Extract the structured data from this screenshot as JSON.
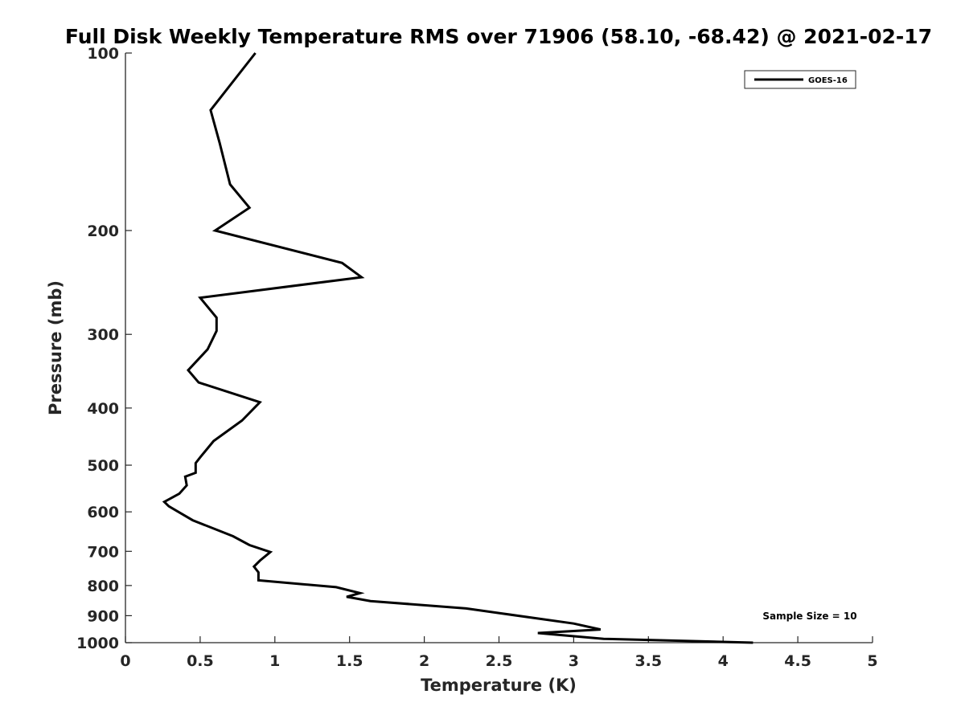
{
  "chart_data": {
    "type": "line",
    "title": "Full Disk Weekly Temperature RMS over 71906 (58.10, -68.42) @ 2021-02-17",
    "xlabel": "Temperature (K)",
    "ylabel": "Pressure (mb)",
    "xlim": [
      0,
      5
    ],
    "ylim": [
      100,
      1000
    ],
    "yscale": "log",
    "y_reversed": true,
    "grid": false,
    "x_ticks": [
      "0",
      "0.5",
      "1",
      "1.5",
      "2",
      "2.5",
      "3",
      "3.5",
      "4",
      "4.5",
      "5"
    ],
    "y_ticks": [
      "100",
      "200",
      "300",
      "400",
      "500",
      "600",
      "700",
      "800",
      "900",
      "1000"
    ],
    "legend": {
      "placement": "top-right",
      "entries": [
        "GOES-16"
      ]
    },
    "annotations": [
      "Sample Size = 10"
    ],
    "series": [
      {
        "name": "GOES-16",
        "color": "#000000",
        "x": [
          4.2,
          3.2,
          2.76,
          3.18,
          3.0,
          2.28,
          1.64,
          1.48,
          1.57,
          1.41,
          0.89,
          0.89,
          0.86,
          0.9,
          0.97,
          0.83,
          0.72,
          0.45,
          0.29,
          0.26,
          0.36,
          0.41,
          0.4,
          0.47,
          0.47,
          0.5,
          0.59,
          0.78,
          0.9,
          0.49,
          0.42,
          0.55,
          0.61,
          0.61,
          0.5,
          1.58,
          1.45,
          0.6,
          0.83,
          0.7,
          0.63,
          0.57,
          0.87
        ],
        "y": [
          1000,
          985,
          963,
          950,
          928,
          875,
          850,
          836,
          824,
          805,
          784,
          760,
          743,
          726,
          702,
          683,
          660,
          620,
          587,
          577,
          559,
          541,
          523,
          515,
          496,
          485,
          455,
          420,
          391,
          362,
          345,
          318,
          296,
          281,
          260,
          240,
          227,
          200,
          183,
          167,
          142,
          125,
          100
        ]
      }
    ]
  }
}
